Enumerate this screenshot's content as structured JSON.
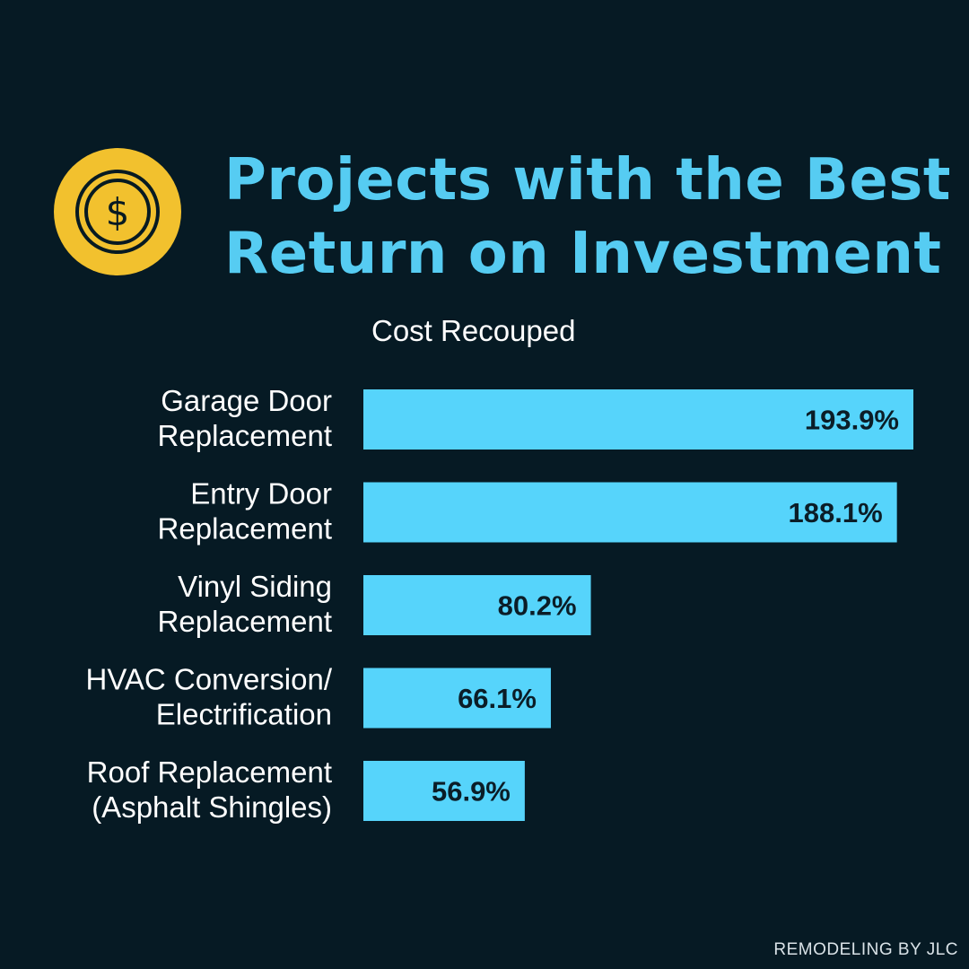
{
  "title_lines": [
    "Projects with the Best",
    "Return on Investment"
  ],
  "source": "REMODELING BY JLC",
  "icon": "dollar-coin-icon",
  "colors": {
    "background": "#061a24",
    "accent": "#56ccf2",
    "bar": "#56d4fb",
    "coin": "#f2c12e",
    "coin_dark": "#071a22"
  },
  "chart_data": {
    "type": "bar",
    "orientation": "horizontal",
    "subtitle": "Cost Recouped",
    "categories": [
      [
        "Garage Door",
        "Replacement"
      ],
      [
        "Entry Door",
        "Replacement"
      ],
      [
        "Vinyl Siding",
        "Replacement"
      ],
      [
        "HVAC Conversion/",
        "Electrification"
      ],
      [
        "Roof Replacement",
        "(Asphalt Shingles)"
      ]
    ],
    "values": [
      193.9,
      188.1,
      80.2,
      66.1,
      56.9
    ],
    "value_labels": [
      "193.9%",
      "188.1%",
      "80.2%",
      "66.1%",
      "56.9%"
    ],
    "unit": "%",
    "xlim": [
      0,
      193.9
    ],
    "grid": false,
    "legend": "none"
  }
}
